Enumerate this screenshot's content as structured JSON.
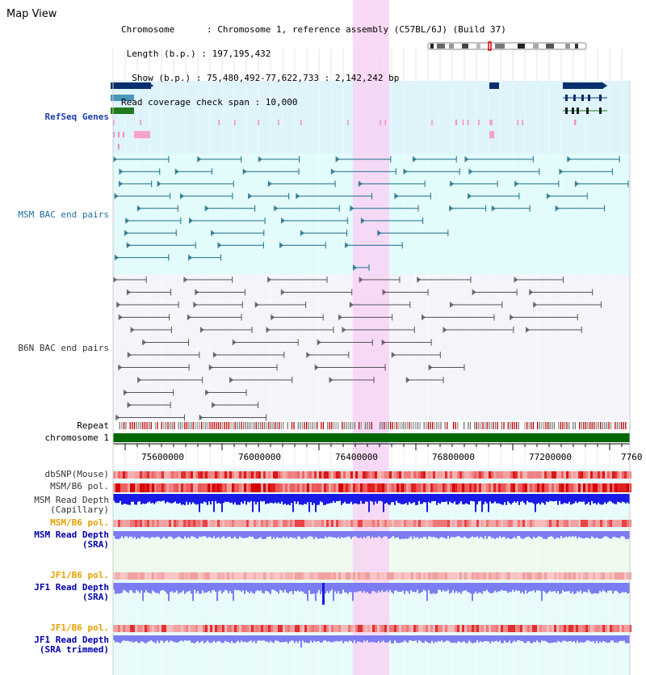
{
  "header": {
    "title": "Map View",
    "info_lines": [
      "Chromosome      : Chromosome 1, reference assembly (C57BL/6J) (Build 37)",
      " Length (b.p.) : 197,195,432",
      "  Show (b.p.) : 75,480,492-77,622,733 : 2,142,242 bp",
      "Read coverage check span : 10,000"
    ]
  },
  "tracks": {
    "refseq": "RefSeq Genes",
    "msm_bac": "MSM BAC end pairs",
    "b6n_bac": "B6N BAC end pairs",
    "repeat": "Repeat",
    "chromosome": "chromosome 1",
    "dbsnp": "dbSNP(Mouse)",
    "msm_b6_pol": "MSM/B6 pol.",
    "msm_depth_cap": "MSM Read Depth\n(Capillary)",
    "msm_b6_pol2": "MSM/B6 pol.",
    "msm_depth_sra": "MSM Read Depth\n(SRA)",
    "jf1_b6_pol": "JF1/B6 pol.",
    "jf1_depth_sra": "JF1 Read Depth\n(SRA)",
    "jf1_b6_pol2": "JF1/B6 pol.",
    "jf1_depth_trim": "JF1 Read Depth\n(SRA trimmed)"
  },
  "axis": {
    "ticks": [
      "75600000",
      "76000000",
      "76400000",
      "76800000",
      "77200000",
      "7760"
    ]
  },
  "colors": {
    "refseq_bg": "#dff3fb",
    "msm_bg": "#e2fbfb",
    "b6n_bg": "#f4f4fb",
    "highlight": "#f7d4f4",
    "msm_label": "#1d6ea2",
    "b6n_label": "#333333",
    "blue_label": "#0000aa",
    "orange_label": "#e8a000",
    "chromosome_bar": "#006600",
    "depth_dark": "#1a1ae6",
    "depth_light": "#7c7cf2"
  }
}
